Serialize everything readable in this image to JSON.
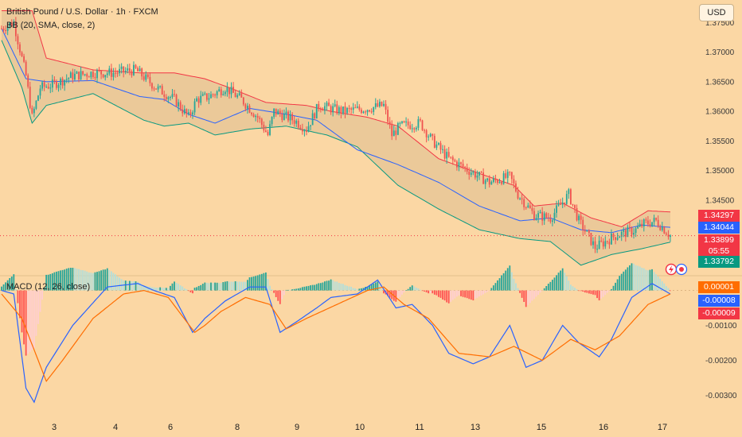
{
  "header": {
    "title": "British Pound / U.S. Dollar · 1h · FXCM",
    "bb_label": "BB (20, SMA, close, 2)",
    "macd_label": "MACD (12, 26, close)"
  },
  "currency_button": "USD",
  "price_axis": {
    "ticks": [
      "1.37500",
      "1.37000",
      "1.36500",
      "1.36000",
      "1.35500",
      "1.35000",
      "1.34500"
    ],
    "tags": {
      "bb_upper": "1.34297",
      "bb_middle": "1.34044",
      "last_price": "1.33899",
      "countdown": "05:55",
      "bb_lower": "1.33792"
    }
  },
  "macd_axis": {
    "ticks": [
      "-0.00100",
      "-0.00200",
      "-0.00300"
    ],
    "tags": {
      "histogram": "0.00001",
      "macd": "-0.00008",
      "signal": "-0.00009"
    }
  },
  "time_axis": {
    "labels": [
      "3",
      "4",
      "6",
      "8",
      "9",
      "10",
      "11",
      "13",
      "15",
      "16",
      "17"
    ]
  },
  "colors": {
    "background": "#fbd7a4",
    "bull": "#26a69a",
    "bear": "#ef5350",
    "bb_upper": "#f23645",
    "bb_middle": "#2962ff",
    "bb_lower": "#089981",
    "macd": "#2962ff",
    "signal": "#ff6d00"
  },
  "chart_data": {
    "type": "candlestick",
    "symbol": "GBPUSD",
    "timeframe": "1h",
    "price_range": [
      1.3325,
      1.378
    ],
    "macd_range": [
      -0.0034,
      0.0004
    ],
    "anchors": {
      "bb_middle": [
        [
          0,
          1.374
        ],
        [
          12,
          1.3655
        ],
        [
          22,
          1.365
        ],
        [
          45,
          1.3652
        ],
        [
          68,
          1.3625
        ],
        [
          80,
          1.362
        ],
        [
          92,
          1.3595
        ],
        [
          105,
          1.358
        ],
        [
          122,
          1.3605
        ],
        [
          140,
          1.3595
        ],
        [
          155,
          1.3585
        ],
        [
          175,
          1.3535
        ],
        [
          195,
          1.351
        ],
        [
          215,
          1.348
        ],
        [
          235,
          1.344
        ],
        [
          255,
          1.3415
        ],
        [
          270,
          1.342
        ],
        [
          285,
          1.34
        ],
        [
          300,
          1.3395
        ],
        [
          315,
          1.3408
        ],
        [
          329,
          1.3404
        ]
      ],
      "bb_upper": [
        [
          0,
          1.377
        ],
        [
          15,
          1.377
        ],
        [
          22,
          1.369
        ],
        [
          45,
          1.367
        ],
        [
          68,
          1.3665
        ],
        [
          85,
          1.3665
        ],
        [
          100,
          1.3655
        ],
        [
          112,
          1.364
        ],
        [
          130,
          1.3615
        ],
        [
          150,
          1.361
        ],
        [
          162,
          1.36
        ],
        [
          180,
          1.359
        ],
        [
          195,
          1.3575
        ],
        [
          215,
          1.352
        ],
        [
          235,
          1.3495
        ],
        [
          252,
          1.3475
        ],
        [
          262,
          1.344
        ],
        [
          276,
          1.3445
        ],
        [
          290,
          1.342
        ],
        [
          305,
          1.3405
        ],
        [
          318,
          1.3432
        ],
        [
          329,
          1.343
        ]
      ],
      "bb_lower": [
        [
          0,
          1.372
        ],
        [
          10,
          1.364
        ],
        [
          15,
          1.358
        ],
        [
          22,
          1.361
        ],
        [
          45,
          1.363
        ],
        [
          70,
          1.3585
        ],
        [
          80,
          1.3575
        ],
        [
          92,
          1.358
        ],
        [
          105,
          1.356
        ],
        [
          122,
          1.357
        ],
        [
          140,
          1.3575
        ],
        [
          160,
          1.356
        ],
        [
          175,
          1.354
        ],
        [
          195,
          1.3475
        ],
        [
          215,
          1.3435
        ],
        [
          235,
          1.34
        ],
        [
          255,
          1.3385
        ],
        [
          270,
          1.338
        ],
        [
          285,
          1.334
        ],
        [
          300,
          1.3358
        ],
        [
          315,
          1.3368
        ],
        [
          329,
          1.3379
        ]
      ],
      "close": [
        [
          0,
          1.374
        ],
        [
          6,
          1.375
        ],
        [
          12,
          1.366
        ],
        [
          15,
          1.359
        ],
        [
          19,
          1.364
        ],
        [
          25,
          1.3645
        ],
        [
          35,
          1.366
        ],
        [
          45,
          1.3665
        ],
        [
          55,
          1.3665
        ],
        [
          66,
          1.367
        ],
        [
          76,
          1.364
        ],
        [
          85,
          1.362
        ],
        [
          92,
          1.359
        ],
        [
          96,
          1.362
        ],
        [
          102,
          1.3625
        ],
        [
          110,
          1.364
        ],
        [
          118,
          1.362
        ],
        [
          126,
          1.359
        ],
        [
          131,
          1.356
        ],
        [
          134,
          1.36
        ],
        [
          144,
          1.3585
        ],
        [
          150,
          1.357
        ],
        [
          156,
          1.361
        ],
        [
          168,
          1.36
        ],
        [
          180,
          1.3605
        ],
        [
          188,
          1.361
        ],
        [
          192,
          1.356
        ],
        [
          196,
          1.3575
        ],
        [
          206,
          1.358
        ],
        [
          212,
          1.355
        ],
        [
          220,
          1.352
        ],
        [
          230,
          1.35
        ],
        [
          240,
          1.348
        ],
        [
          250,
          1.349
        ],
        [
          254,
          1.346
        ],
        [
          262,
          1.3425
        ],
        [
          270,
          1.342
        ],
        [
          279,
          1.346
        ],
        [
          284,
          1.3415
        ],
        [
          292,
          1.337
        ],
        [
          302,
          1.339
        ],
        [
          312,
          1.34
        ],
        [
          316,
          1.341
        ],
        [
          322,
          1.3415
        ],
        [
          329,
          1.339
        ]
      ],
      "macd": [
        [
          0,
          -0.0
        ],
        [
          6,
          -0.0001
        ],
        [
          12,
          -0.0028
        ],
        [
          16,
          -0.0032
        ],
        [
          22,
          -0.0022
        ],
        [
          35,
          -0.001
        ],
        [
          52,
          0.0001
        ],
        [
          67,
          0.0002
        ],
        [
          75,
          0.0
        ],
        [
          85,
          -0.0002
        ],
        [
          94,
          -0.0012
        ],
        [
          100,
          -0.0008
        ],
        [
          110,
          -0.0003
        ],
        [
          122,
          0.0001
        ],
        [
          130,
          0.0001
        ],
        [
          137,
          -0.0012
        ],
        [
          145,
          -0.0009
        ],
        [
          155,
          -0.0005
        ],
        [
          162,
          -0.0002
        ],
        [
          175,
          -0.0001
        ],
        [
          185,
          0.0003
        ],
        [
          194,
          -0.0005
        ],
        [
          202,
          -0.0004
        ],
        [
          212,
          -0.001
        ],
        [
          220,
          -0.0018
        ],
        [
          232,
          -0.0021
        ],
        [
          240,
          -0.0019
        ],
        [
          250,
          -0.001
        ],
        [
          258,
          -0.0022
        ],
        [
          266,
          -0.002
        ],
        [
          276,
          -0.001
        ],
        [
          284,
          -0.0015
        ],
        [
          294,
          -0.0019
        ],
        [
          300,
          -0.0014
        ],
        [
          310,
          -0.0002
        ],
        [
          320,
          0.0002
        ],
        [
          329,
          -0.0001
        ]
      ],
      "signal": [
        [
          0,
          -0.0001
        ],
        [
          10,
          -0.0008
        ],
        [
          22,
          -0.0026
        ],
        [
          30,
          -0.002
        ],
        [
          45,
          -0.0008
        ],
        [
          60,
          -0.0001
        ],
        [
          70,
          0.0
        ],
        [
          82,
          -0.0002
        ],
        [
          95,
          -0.0012
        ],
        [
          100,
          -0.001
        ],
        [
          108,
          -0.0006
        ],
        [
          120,
          -0.0002
        ],
        [
          132,
          -0.0004
        ],
        [
          140,
          -0.0011
        ],
        [
          150,
          -0.0008
        ],
        [
          165,
          -0.0004
        ],
        [
          180,
          -0.0
        ],
        [
          188,
          0.0001
        ],
        [
          198,
          -0.0004
        ],
        [
          210,
          -0.0008
        ],
        [
          225,
          -0.0018
        ],
        [
          240,
          -0.0019
        ],
        [
          252,
          -0.0016
        ],
        [
          266,
          -0.002
        ],
        [
          280,
          -0.0014
        ],
        [
          292,
          -0.0017
        ],
        [
          304,
          -0.0013
        ],
        [
          318,
          -0.0004
        ],
        [
          329,
          -0.0001
        ]
      ]
    },
    "last": {
      "bb_upper": 1.34297,
      "bb_middle": 1.34044,
      "close": 1.33899,
      "bb_lower": 1.33792,
      "histogram": 1e-05,
      "macd": -8e-05,
      "signal": -9e-05
    }
  }
}
